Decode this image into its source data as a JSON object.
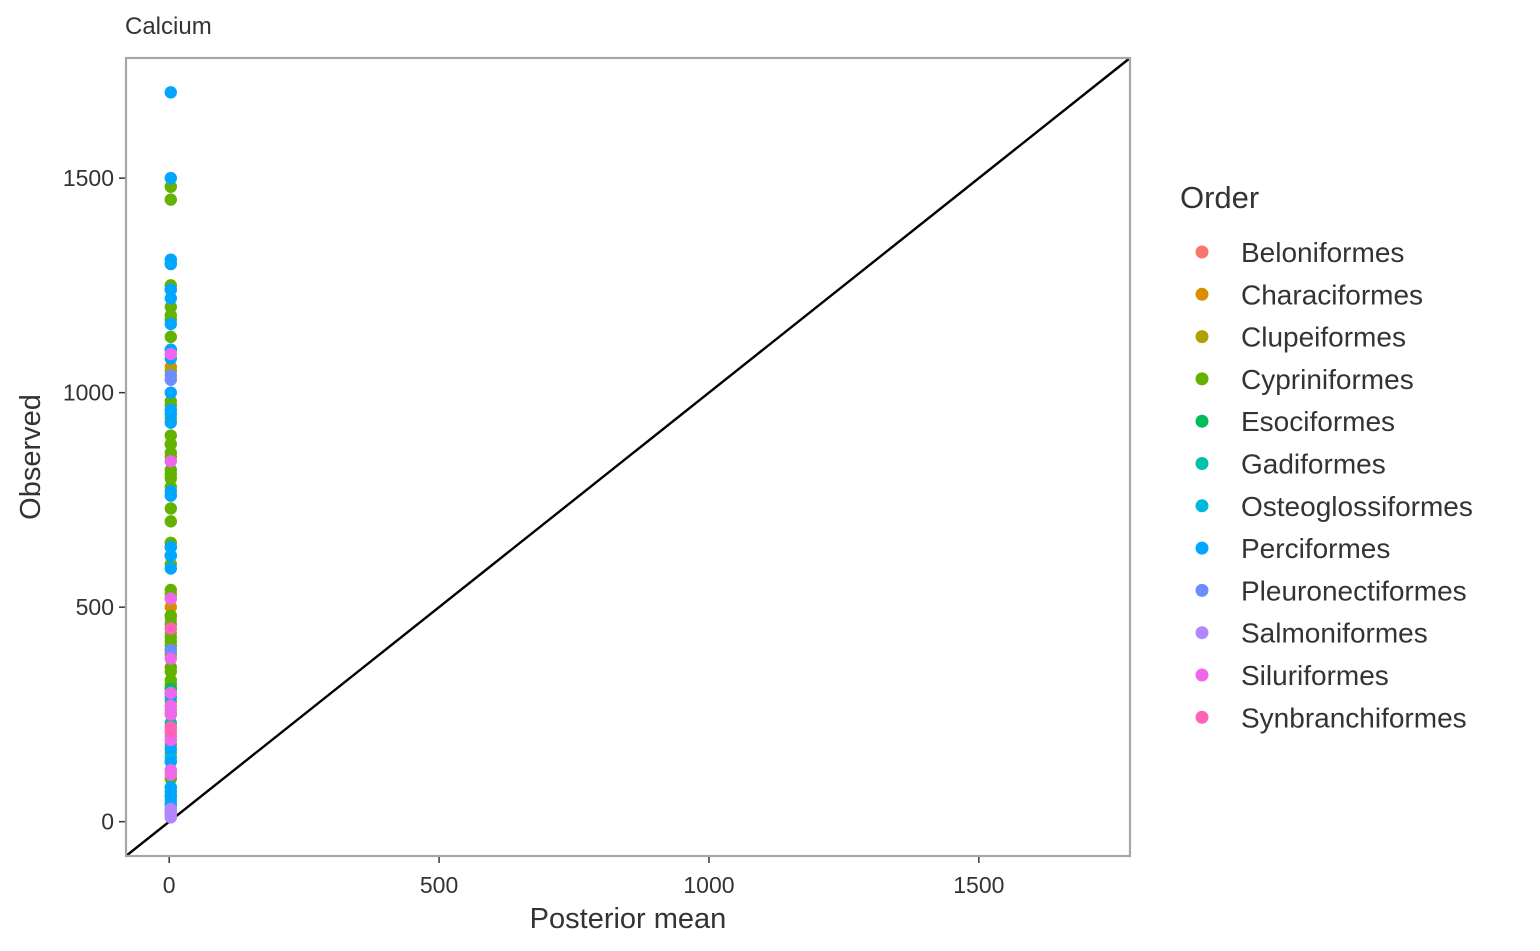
{
  "chart_data": {
    "type": "scatter",
    "title": "Calcium",
    "xlabel": "Posterior mean",
    "ylabel": "Observed",
    "xlim": [
      -80,
      1780
    ],
    "ylim": [
      -80,
      1780
    ],
    "x_ticks": [
      0,
      500,
      1000,
      1500
    ],
    "y_ticks": [
      0,
      500,
      1000,
      1500
    ],
    "grid": false,
    "reference_line": "y = x",
    "legend": {
      "title": "Order",
      "position": "right",
      "entries": [
        {
          "name": "Beloniformes",
          "color": "#F8766D"
        },
        {
          "name": "Characiformes",
          "color": "#DB8E00"
        },
        {
          "name": "Clupeiformes",
          "color": "#AEA200"
        },
        {
          "name": "Cypriniformes",
          "color": "#64B200"
        },
        {
          "name": "Esociformes",
          "color": "#00BD5C"
        },
        {
          "name": "Gadiformes",
          "color": "#00C1A7"
        },
        {
          "name": "Osteoglossiformes",
          "color": "#00BADE"
        },
        {
          "name": "Perciformes",
          "color": "#00A6FF"
        },
        {
          "name": "Pleuronectiformes",
          "color": "#6F8CFF"
        },
        {
          "name": "Salmoniformes",
          "color": "#B385FF"
        },
        {
          "name": "Siluriformes",
          "color": "#EF67EB"
        },
        {
          "name": "Synbranchiformes",
          "color": "#FF63B6"
        }
      ]
    },
    "series": [
      {
        "name": "Beloniformes",
        "x": [
          3,
          3
        ],
        "y": [
          470,
          260
        ]
      },
      {
        "name": "Characiformes",
        "x": [
          3,
          3
        ],
        "y": [
          1060,
          500
        ]
      },
      {
        "name": "Clupeiformes",
        "x": [
          3,
          3,
          3
        ],
        "y": [
          480,
          440,
          1050
        ]
      },
      {
        "name": "Cypriniformes",
        "x": [
          3,
          3,
          3,
          3,
          3,
          3,
          3,
          3,
          3,
          3,
          3,
          3,
          3,
          3,
          3,
          3,
          3,
          3,
          3,
          3,
          3,
          3,
          3,
          3,
          3,
          3,
          3,
          3,
          3,
          3,
          3,
          3,
          3,
          3,
          3,
          3,
          3,
          3,
          3,
          3,
          3,
          3,
          3,
          3,
          3,
          3,
          3,
          3,
          3,
          3,
          3,
          3,
          3,
          3,
          3
        ],
        "y": [
          1480,
          1450,
          1300,
          1250,
          1240,
          1200,
          1180,
          1170,
          1130,
          1100,
          980,
          970,
          940,
          900,
          880,
          860,
          850,
          820,
          810,
          800,
          780,
          730,
          700,
          650,
          640,
          600,
          540,
          530,
          520,
          480,
          460,
          430,
          420,
          410,
          400,
          390,
          360,
          350,
          330,
          320,
          310,
          300,
          280,
          250,
          220,
          200,
          180,
          160,
          140,
          120,
          100,
          80,
          60,
          40,
          30
        ]
      },
      {
        "name": "Esociformes",
        "x": [
          3
        ],
        "y": [
          310
        ]
      },
      {
        "name": "Gadiformes",
        "x": [
          3,
          3
        ],
        "y": [
          230,
          50
        ]
      },
      {
        "name": "Osteoglossiformes",
        "x": [
          3,
          3,
          3
        ],
        "y": [
          620,
          200,
          150
        ]
      },
      {
        "name": "Perciformes",
        "x": [
          3,
          3,
          3,
          3,
          3,
          3,
          3,
          3,
          3,
          3,
          3,
          3,
          3,
          3,
          3,
          3,
          3,
          3,
          3,
          3,
          3,
          3,
          3,
          3,
          3,
          3
        ],
        "y": [
          1700,
          1500,
          1310,
          1300,
          1240,
          1220,
          1160,
          1100,
          1080,
          1000,
          960,
          950,
          930,
          770,
          760,
          640,
          620,
          590,
          300,
          290,
          170,
          140,
          80,
          70,
          60,
          40
        ]
      },
      {
        "name": "Pleuronectiformes",
        "x": [
          3,
          3,
          3
        ],
        "y": [
          1040,
          1030,
          400
        ]
      },
      {
        "name": "Salmoniformes",
        "x": [
          3,
          3,
          3,
          3,
          3
        ],
        "y": [
          30,
          25,
          20,
          15,
          10
        ]
      },
      {
        "name": "Siluriformes",
        "x": [
          3,
          3,
          3,
          3,
          3,
          3,
          3,
          3,
          3,
          3,
          3
        ],
        "y": [
          1090,
          840,
          520,
          380,
          300,
          270,
          250,
          200,
          190,
          120,
          110
        ]
      },
      {
        "name": "Synbranchiformes",
        "x": [
          3,
          3,
          3
        ],
        "y": [
          450,
          220,
          210
        ]
      }
    ]
  }
}
